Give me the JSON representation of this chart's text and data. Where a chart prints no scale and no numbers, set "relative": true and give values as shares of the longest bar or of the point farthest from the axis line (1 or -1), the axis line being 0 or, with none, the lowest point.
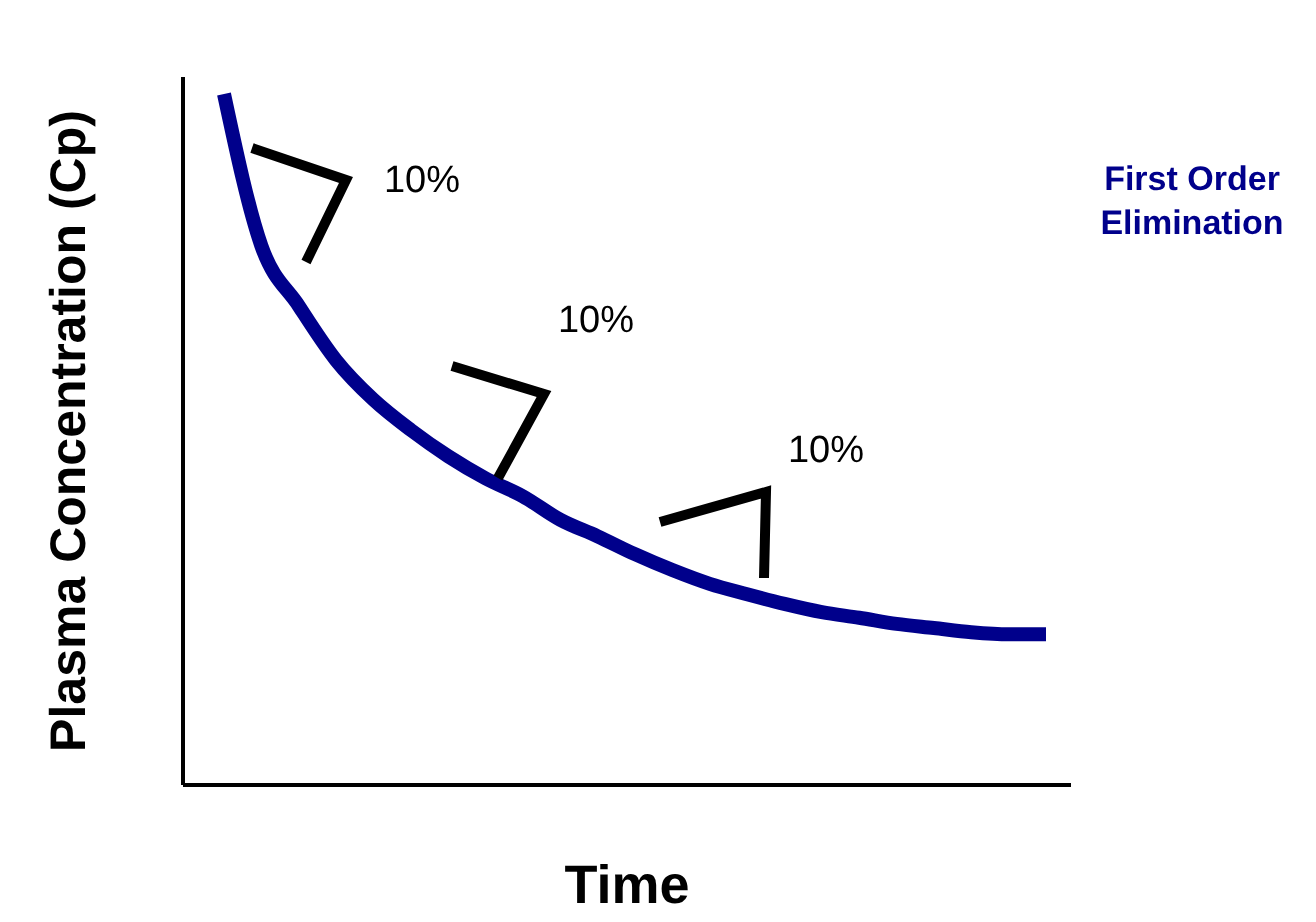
{
  "chart_data": {
    "type": "line",
    "relative": true,
    "xlabel": "Time",
    "ylabel": "Plasma Concentration (Cp)",
    "categories": [
      null,
      null,
      null,
      null,
      null,
      null,
      null,
      null,
      null,
      null,
      null,
      null,
      null,
      null,
      null,
      null,
      null,
      null,
      null,
      null,
      null,
      null,
      null
    ],
    "series": [
      {
        "name": "First Order Elimination",
        "color": "#00008b",
        "values": [
          1.0,
          0.78,
          0.693,
          0.614,
          0.557,
          0.513,
          0.475,
          0.443,
          0.417,
          0.383,
          0.359,
          0.333,
          0.31,
          0.29,
          0.275,
          0.261,
          0.249,
          0.241,
          0.232,
          0.226,
          0.22,
          0.217,
          0.217
        ]
      }
    ],
    "annotations": [
      "10%",
      "10%",
      "10%"
    ],
    "grid": false,
    "legend": false,
    "line_style": "solid"
  }
}
